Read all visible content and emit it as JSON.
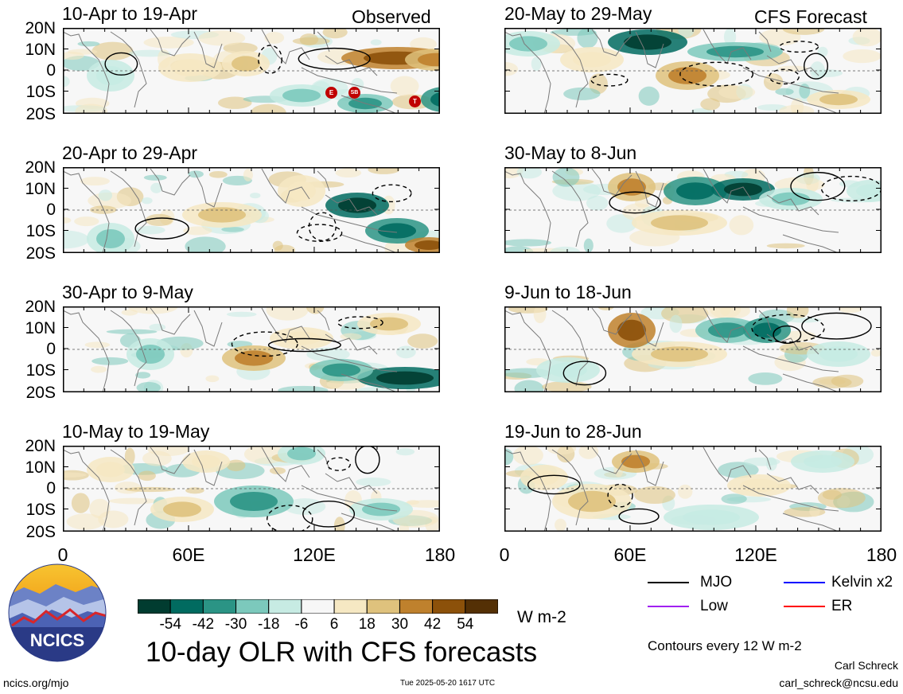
{
  "main_title": "10-day OLR with CFS forecasts",
  "observed_tag": "Observed",
  "forecast_tag": "CFS Forecast",
  "panels": [
    {
      "title": "10-Apr to 19-Apr",
      "column": "observed"
    },
    {
      "title": "20-Apr to 29-Apr",
      "column": "observed"
    },
    {
      "title": "30-Apr to 9-May",
      "column": "observed"
    },
    {
      "title": "10-May to 19-May",
      "column": "observed"
    },
    {
      "title": "20-May to 29-May",
      "column": "forecast"
    },
    {
      "title": "30-May to 8-Jun",
      "column": "forecast"
    },
    {
      "title": "9-Jun to 18-Jun",
      "column": "forecast"
    },
    {
      "title": "19-Jun to 28-Jun",
      "column": "forecast"
    }
  ],
  "y_ticks": [
    "20N",
    "10N",
    "0",
    "10S",
    "20S"
  ],
  "x_ticks": [
    "0",
    "60E",
    "120E",
    "180"
  ],
  "storm_markers": [
    "E",
    "SB",
    "T"
  ],
  "colorbar": {
    "colors": [
      "#013c30",
      "#016b60",
      "#2b9485",
      "#7cc9bc",
      "#c7ebe3",
      "#f7f7f7",
      "#f6e8c3",
      "#dfc27d",
      "#bf812d",
      "#8c510a",
      "#543005"
    ],
    "tick_labels": [
      "-54",
      "-42",
      "-30",
      "-18",
      "-6",
      "6",
      "18",
      "30",
      "42",
      "54"
    ],
    "units": "W m-2"
  },
  "legend": {
    "items": [
      {
        "label": "MJO",
        "color": "#000000"
      },
      {
        "label": "Kelvin x2",
        "color": "#0000ff"
      },
      {
        "label": "Low",
        "color": "#a020f0"
      },
      {
        "label": "ER",
        "color": "#ff0000"
      }
    ],
    "contour_note": "Contours every 12 W m-2"
  },
  "logo_text": "NCICS",
  "footer": {
    "url": "ncics.org/mjo",
    "timestamp": "Tue 2025-05-20 1617 UTC",
    "author": "Carl Schreck",
    "email": "carl_schreck@ncsu.edu"
  },
  "chart_data": {
    "type": "heatmap",
    "variable": "10-day OLR anomaly",
    "units": "W m-2",
    "x_range": [
      0,
      180
    ],
    "y_range": [
      -20,
      20
    ],
    "contour_interval": 12,
    "observed": [
      "10-Apr to 19-Apr",
      "20-Apr to 29-Apr",
      "30-Apr to 9-May",
      "10-May to 19-May"
    ],
    "forecast": [
      "20-May to 29-May",
      "30-May to 8-Jun",
      "9-Jun to 18-Jun",
      "19-Jun to 28-Jun"
    ]
  }
}
